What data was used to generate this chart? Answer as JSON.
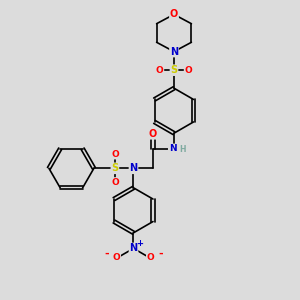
{
  "bg_color": "#dcdcdc",
  "atom_colors": {
    "C": "#000000",
    "N": "#0000cc",
    "O": "#ff0000",
    "S": "#cccc00",
    "H": "#7faaa0"
  },
  "bond_color": "#000000",
  "bond_width": 1.2,
  "figsize": [
    3.0,
    3.0
  ],
  "dpi": 100
}
